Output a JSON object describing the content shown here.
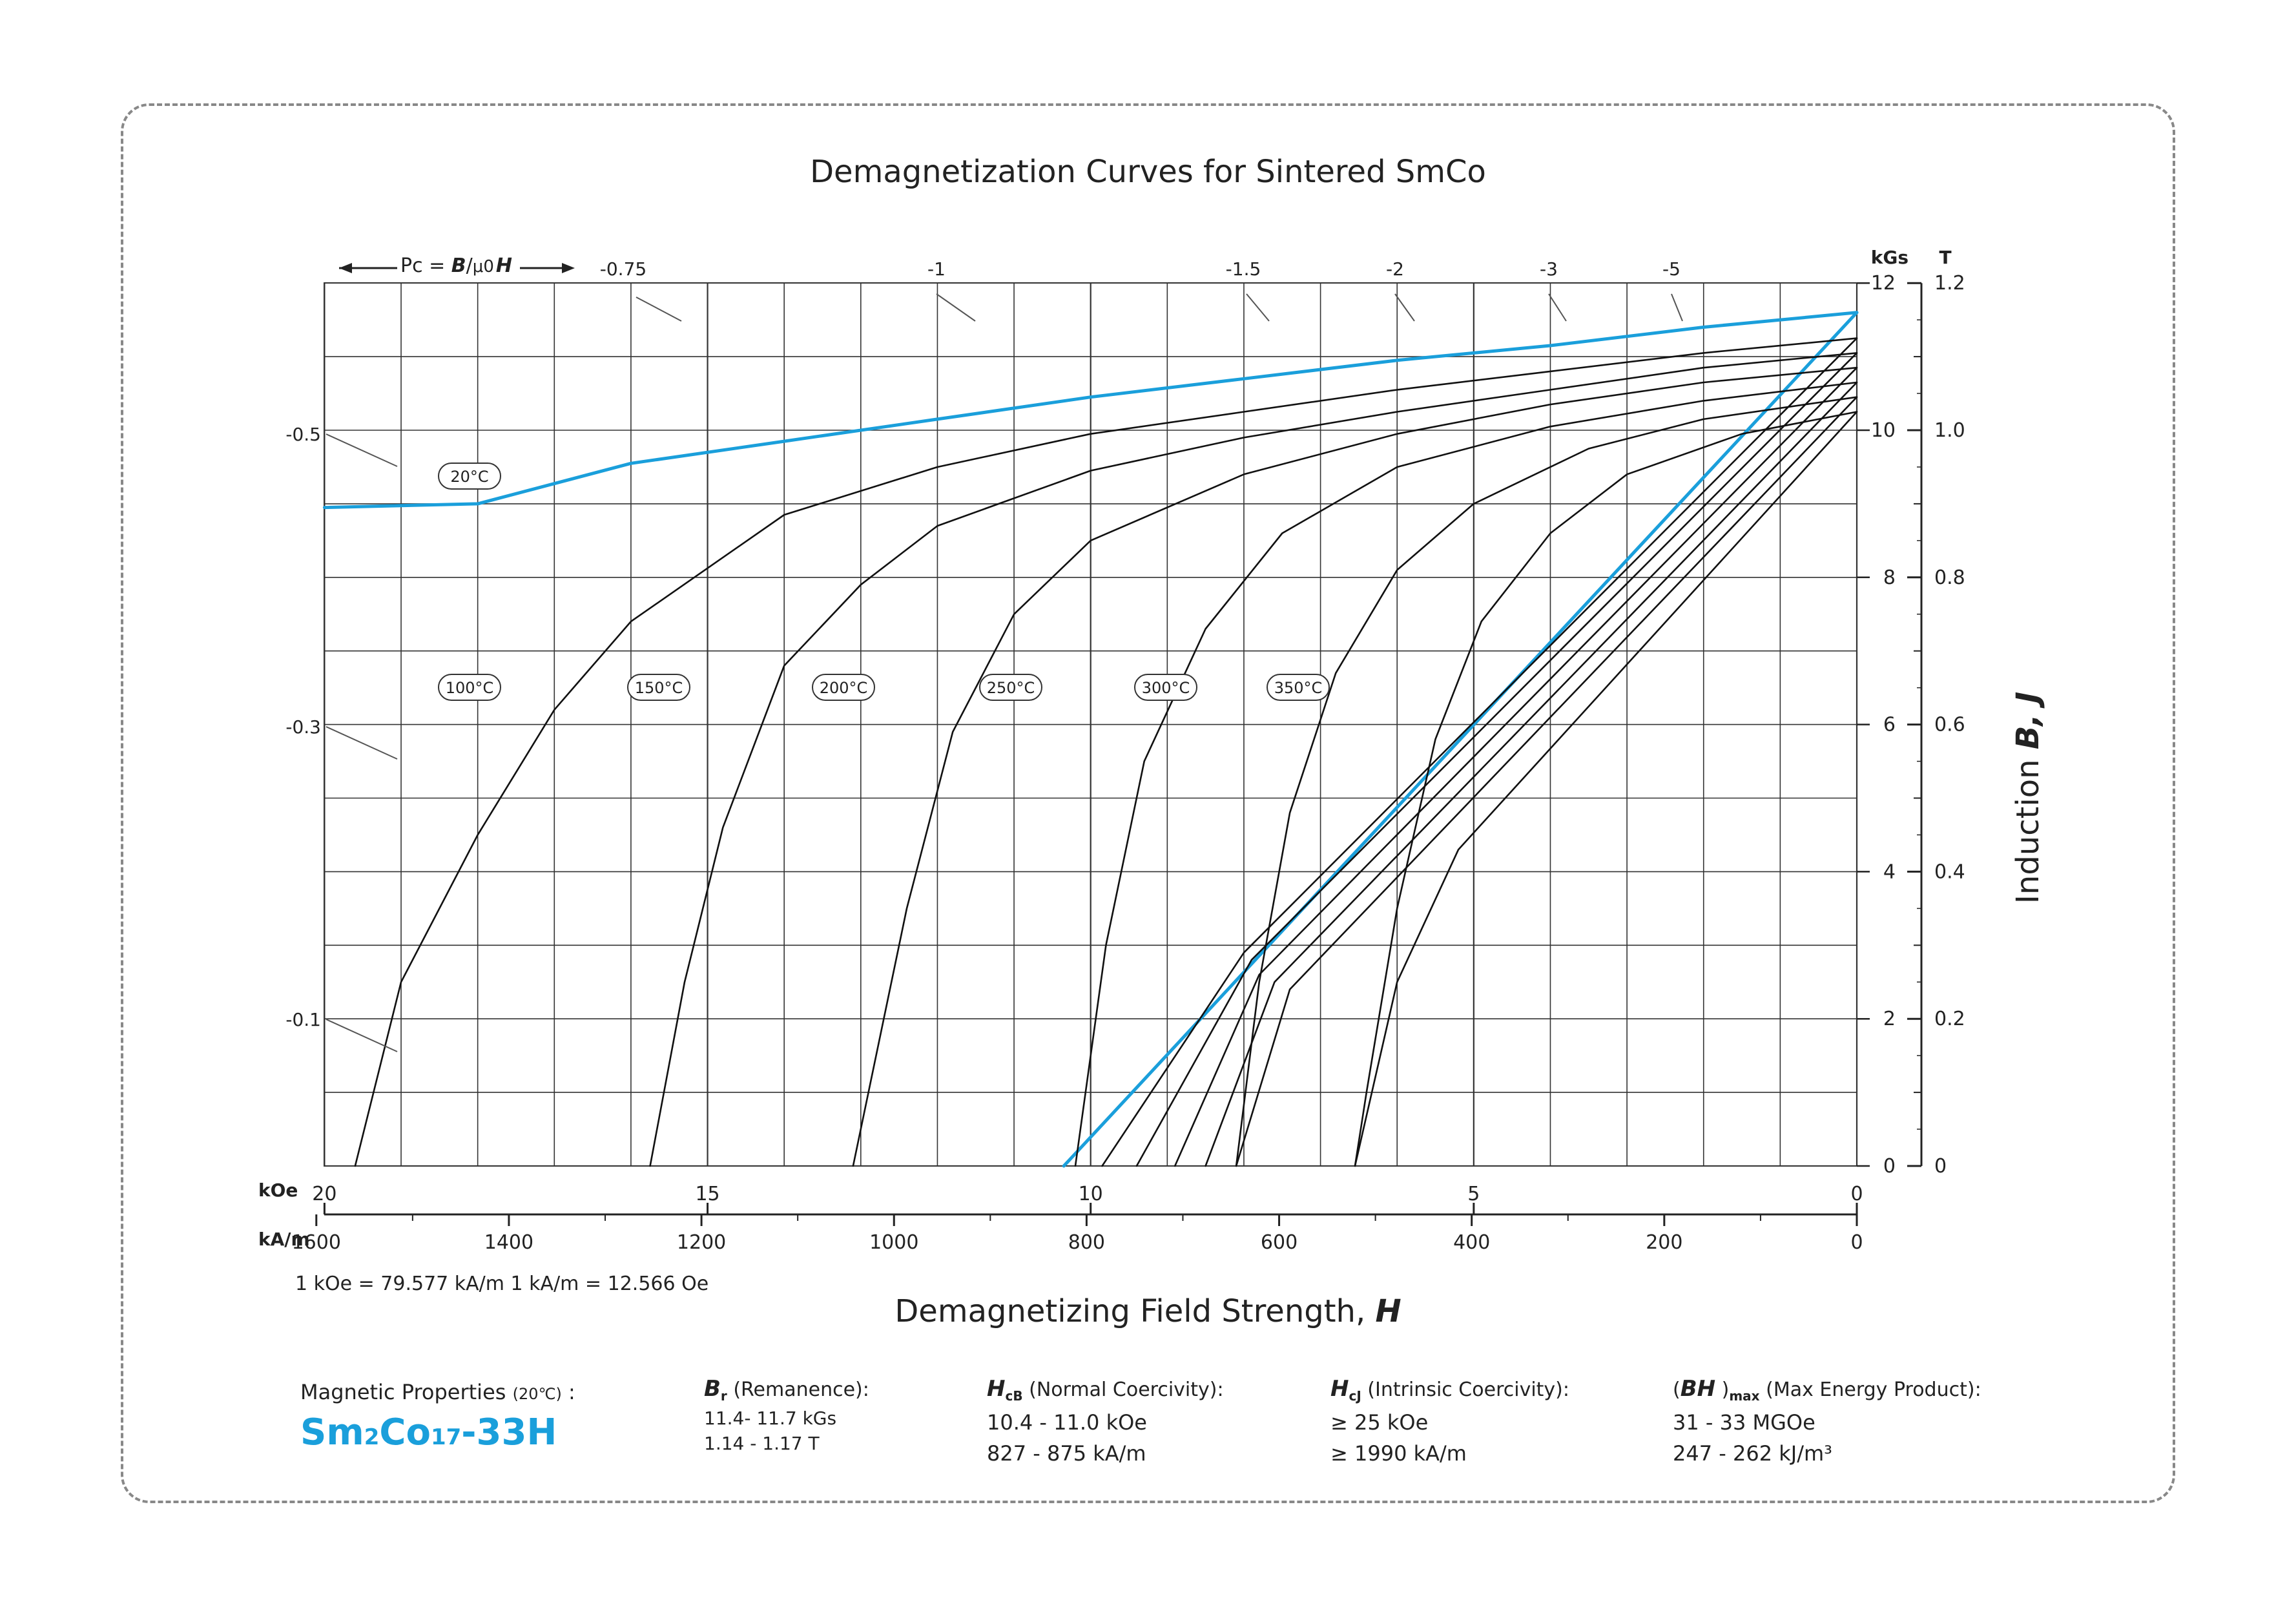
{
  "title": "Demagnetization Curves for Sintered SmCo",
  "pc_label": {
    "prefix": "Pc = ",
    "b": "B",
    "slash": "/",
    "mu": "μ0",
    "h": "H"
  },
  "x_axis": {
    "title_text": "Demagnetizing Field Strength, ",
    "title_symbol": "H",
    "koe_unit": "kOe",
    "kam_unit": "kA/m",
    "koe_ticks": [
      "20",
      "15",
      "10",
      "5",
      "0"
    ],
    "kam_ticks": [
      "1600",
      "1400",
      "1200",
      "1000",
      "800",
      "600",
      "400",
      "200",
      "0"
    ],
    "conversion": "1 kOe = 79.577 kA/m   1 kA/m = 12.566 Oe"
  },
  "y_axis": {
    "title_text": "Induction  ",
    "title_symbol": "B,  J",
    "kgs_unit": "kGs",
    "t_unit": "T",
    "kgs_ticks": [
      "12",
      "10",
      "8",
      "6",
      "4",
      "2",
      "0"
    ],
    "t_ticks": [
      "1.2",
      "1.0",
      "0.8",
      "0.6",
      "0.4",
      "0.2",
      "0"
    ]
  },
  "pc_lines_top": [
    "-0.75",
    "-1",
    "-1.5",
    "-2",
    "-3",
    "-5"
  ],
  "pc_lines_left": [
    "-0.5",
    "-0.3",
    "-0.1"
  ],
  "curve_labels": [
    "20°C",
    "100°C",
    "150°C",
    "200°C",
    "250°C",
    "300°C",
    "350°C"
  ],
  "colors": {
    "accent": "#1a9fdb",
    "curve": "#111111",
    "grid": "#222222"
  },
  "chart_data": {
    "type": "line",
    "title": "Demagnetization Curves for Sintered SmCo",
    "xlabel": "Demagnetizing Field Strength, H",
    "ylabel": "Induction B, J",
    "x_unit": "kOe",
    "y_unit": "kGs",
    "xlim": [
      20,
      0
    ],
    "ylim": [
      0,
      12
    ],
    "x_reversed": true,
    "grid": true,
    "series": [
      {
        "name": "20°C",
        "kind": "J",
        "color": "#1a9fdb",
        "points": [
          [
            0,
            11.6
          ],
          [
            2,
            11.4
          ],
          [
            4,
            11.15
          ],
          [
            6,
            10.95
          ],
          [
            8,
            10.7
          ],
          [
            10,
            10.45
          ],
          [
            12,
            10.15
          ],
          [
            14,
            9.85
          ],
          [
            16,
            9.55
          ],
          [
            18,
            9.0
          ],
          [
            20,
            8.95
          ]
        ]
      },
      {
        "name": "20°C",
        "kind": "B",
        "color": "#1a9fdb",
        "points": [
          [
            0,
            11.6
          ],
          [
            10.35,
            0
          ]
        ]
      },
      {
        "name": "100°C",
        "kind": "J",
        "color": "#111111",
        "points": [
          [
            0,
            11.25
          ],
          [
            2,
            11.05
          ],
          [
            4,
            10.8
          ],
          [
            6,
            10.55
          ],
          [
            8,
            10.25
          ],
          [
            10,
            9.95
          ],
          [
            12,
            9.5
          ],
          [
            14,
            8.85
          ],
          [
            16,
            7.4
          ],
          [
            17,
            6.2
          ],
          [
            18,
            4.5
          ],
          [
            19,
            2.5
          ],
          [
            19.6,
            0
          ]
        ]
      },
      {
        "name": "150°C",
        "kind": "J",
        "color": "#111111",
        "points": [
          [
            0,
            11.05
          ],
          [
            2,
            10.85
          ],
          [
            4,
            10.55
          ],
          [
            6,
            10.25
          ],
          [
            8,
            9.9
          ],
          [
            10,
            9.45
          ],
          [
            12,
            8.7
          ],
          [
            13,
            7.9
          ],
          [
            14,
            6.8
          ],
          [
            14.8,
            4.6
          ],
          [
            15.3,
            2.5
          ],
          [
            15.75,
            0
          ]
        ]
      },
      {
        "name": "200°C",
        "kind": "J",
        "color": "#111111",
        "points": [
          [
            0,
            10.85
          ],
          [
            2,
            10.65
          ],
          [
            4,
            10.35
          ],
          [
            6,
            9.95
          ],
          [
            8,
            9.4
          ],
          [
            10,
            8.5
          ],
          [
            11,
            7.5
          ],
          [
            11.8,
            5.9
          ],
          [
            12.4,
            3.5
          ],
          [
            13.1,
            0
          ]
        ]
      },
      {
        "name": "250°C",
        "kind": "J",
        "color": "#111111",
        "points": [
          [
            0,
            10.65
          ],
          [
            2,
            10.4
          ],
          [
            4,
            10.05
          ],
          [
            6,
            9.5
          ],
          [
            7.5,
            8.6
          ],
          [
            8.5,
            7.3
          ],
          [
            9.3,
            5.5
          ],
          [
            9.8,
            3.0
          ],
          [
            10.2,
            0
          ]
        ]
      },
      {
        "name": "300°C",
        "kind": "J",
        "color": "#111111",
        "points": [
          [
            0,
            10.45
          ],
          [
            2,
            10.15
          ],
          [
            3.5,
            9.75
          ],
          [
            5,
            9.0
          ],
          [
            6,
            8.1
          ],
          [
            6.8,
            6.7
          ],
          [
            7.4,
            4.8
          ],
          [
            7.8,
            2.5
          ],
          [
            8.1,
            0
          ]
        ]
      },
      {
        "name": "350°C",
        "kind": "J",
        "color": "#111111",
        "points": [
          [
            0,
            10.25
          ],
          [
            1.5,
            9.95
          ],
          [
            3,
            9.4
          ],
          [
            4,
            8.6
          ],
          [
            4.9,
            7.4
          ],
          [
            5.5,
            5.8
          ],
          [
            6.0,
            3.5
          ],
          [
            6.4,
            1.0
          ],
          [
            6.55,
            0
          ]
        ]
      },
      {
        "name": "100°C",
        "kind": "B",
        "color": "#111111",
        "points": [
          [
            0,
            11.25
          ],
          [
            8.0,
            2.9
          ],
          [
            9.85,
            0
          ]
        ]
      },
      {
        "name": "150°C",
        "kind": "B",
        "color": "#111111",
        "points": [
          [
            0,
            11.05
          ],
          [
            7.9,
            2.8
          ],
          [
            9.4,
            0
          ]
        ]
      },
      {
        "name": "200°C",
        "kind": "B",
        "color": "#111111",
        "points": [
          [
            0,
            10.85
          ],
          [
            7.8,
            2.6
          ],
          [
            8.9,
            0
          ]
        ]
      },
      {
        "name": "250°C",
        "kind": "B",
        "color": "#111111",
        "points": [
          [
            0,
            10.65
          ],
          [
            7.6,
            2.5
          ],
          [
            8.5,
            0
          ]
        ]
      },
      {
        "name": "300°C",
        "kind": "B",
        "color": "#111111",
        "points": [
          [
            0,
            10.45
          ],
          [
            7.4,
            2.4
          ],
          [
            8.1,
            0
          ]
        ]
      },
      {
        "name": "350°C",
        "kind": "B",
        "color": "#111111",
        "points": [
          [
            0,
            10.25
          ],
          [
            5.2,
            4.3
          ],
          [
            6.0,
            2.5
          ],
          [
            6.55,
            0
          ]
        ]
      }
    ]
  },
  "properties": {
    "label_prefix": "Magnetic Properties ",
    "label_temp": "(20℃)",
    "label_suffix": " :",
    "grade_a": "Sm",
    "grade_b": "2",
    "grade_c": "Co",
    "grade_d": "17",
    "grade_e": "-33H",
    "br": {
      "sym": "B",
      "sub": "r",
      "label": " (Remanence):",
      "v1": "11.4- 11.7 kGs",
      "v2": "1.14 - 1.17 T"
    },
    "hcb": {
      "sym": "H",
      "sub": "cB",
      "label": " (Normal Coercivity):",
      "v1": "10.4 - 11.0 kOe",
      "v2": "827 - 875 kA/m"
    },
    "hcj": {
      "sym": "H",
      "sub": "cJ",
      "label": " (Intrinsic Coercivity):",
      "v1": "≥ 25 kOe",
      "v2": "≥ 1990 kA/m"
    },
    "bh": {
      "open": "(",
      "sym": "BH",
      "close": " )",
      "sub": "max",
      "label": " (Max Energy Product):",
      "v1": "31 - 33 MGOe",
      "v2": "247 - 262 kJ/m³"
    }
  }
}
